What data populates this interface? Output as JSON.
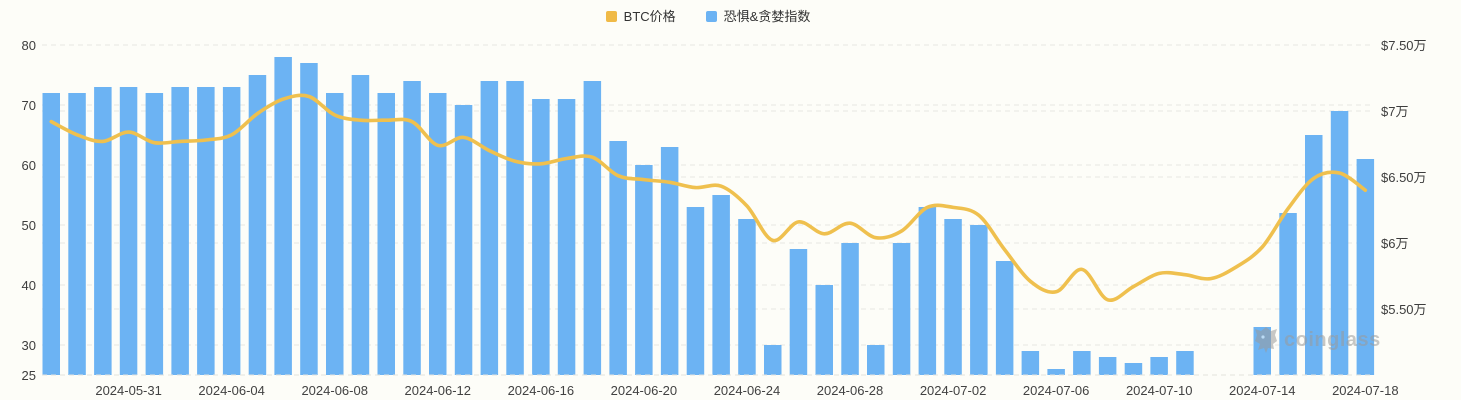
{
  "legend": [
    {
      "id": "btc-price",
      "label": "BTC价格",
      "color": "#F0BA47"
    },
    {
      "id": "fear-greed",
      "label": "恐惧&贪婪指数",
      "color": "#6CB3F3"
    }
  ],
  "watermark": {
    "text": "coinglass"
  },
  "colors": {
    "bar": "#6CB3F3",
    "line": "#EFC04E",
    "grid": "#E7E7E2",
    "axis_text": "#3d3d3d",
    "background": "#fdfdf8"
  },
  "chart_data": {
    "type": "combo-bar-line",
    "categories": [
      "2024-05-28",
      "2024-05-29",
      "2024-05-30",
      "2024-05-31",
      "2024-06-01",
      "2024-06-02",
      "2024-06-03",
      "2024-06-04",
      "2024-06-05",
      "2024-06-06",
      "2024-06-07",
      "2024-06-08",
      "2024-06-09",
      "2024-06-10",
      "2024-06-11",
      "2024-06-12",
      "2024-06-13",
      "2024-06-14",
      "2024-06-15",
      "2024-06-16",
      "2024-06-17",
      "2024-06-18",
      "2024-06-19",
      "2024-06-20",
      "2024-06-21",
      "2024-06-22",
      "2024-06-23",
      "2024-06-24",
      "2024-06-25",
      "2024-06-26",
      "2024-06-27",
      "2024-06-28",
      "2024-06-29",
      "2024-06-30",
      "2024-07-01",
      "2024-07-02",
      "2024-07-03",
      "2024-07-04",
      "2024-07-05",
      "2024-07-06",
      "2024-07-07",
      "2024-07-08",
      "2024-07-09",
      "2024-07-10",
      "2024-07-11",
      "2024-07-12",
      "2024-07-13",
      "2024-07-14",
      "2024-07-15",
      "2024-07-16",
      "2024-07-17",
      "2024-07-18"
    ],
    "series": [
      {
        "name": "恐惧&贪婪指数",
        "type": "bar",
        "axis": "left",
        "color": "#6CB3F3",
        "values": [
          72,
          72,
          73,
          73,
          72,
          73,
          73,
          73,
          75,
          78,
          77,
          72,
          75,
          72,
          74,
          72,
          70,
          74,
          74,
          71,
          71,
          74,
          64,
          60,
          63,
          53,
          55,
          51,
          30,
          46,
          40,
          47,
          30,
          47,
          53,
          51,
          50,
          44,
          29,
          26,
          29,
          28,
          27,
          28,
          29,
          null,
          null,
          33,
          52,
          65,
          69,
          61
        ]
      },
      {
        "name": "BTC价格",
        "type": "line",
        "axis": "right",
        "color": "#EFC04E",
        "unit": "万",
        "values_wan": [
          6.92,
          6.82,
          6.77,
          6.84,
          6.76,
          6.77,
          6.78,
          6.82,
          6.98,
          7.09,
          7.11,
          6.97,
          6.93,
          6.93,
          6.92,
          6.74,
          6.8,
          6.7,
          6.62,
          6.6,
          6.64,
          6.65,
          6.51,
          6.48,
          6.46,
          6.42,
          6.43,
          6.28,
          6.02,
          6.16,
          6.07,
          6.15,
          6.04,
          6.09,
          6.27,
          6.27,
          6.21,
          5.95,
          5.71,
          5.63,
          5.8,
          5.57,
          5.67,
          5.77,
          5.76,
          5.73,
          5.82,
          5.97,
          6.26,
          6.49,
          6.53,
          6.4
        ]
      }
    ],
    "left_axis": {
      "min": 25,
      "max": 80,
      "ticks": [
        80,
        70,
        60,
        50,
        40,
        30,
        25
      ]
    },
    "right_axis": {
      "min_wan": 5.0,
      "max_wan": 7.5,
      "ticks": [
        {
          "label": "$7.50万",
          "value_wan": 7.5
        },
        {
          "label": "$7万",
          "value_wan": 7.0
        },
        {
          "label": "$6.50万",
          "value_wan": 6.5
        },
        {
          "label": "$6万",
          "value_wan": 6.0
        },
        {
          "label": "$5.50万",
          "value_wan": 5.5
        }
      ]
    },
    "x_ticks": [
      {
        "label": "2024-05-31",
        "i": 3
      },
      {
        "label": "2024-06-04",
        "i": 7
      },
      {
        "label": "2024-06-08",
        "i": 11
      },
      {
        "label": "2024-06-12",
        "i": 15
      },
      {
        "label": "2024-06-16",
        "i": 19
      },
      {
        "label": "2024-06-20",
        "i": 23
      },
      {
        "label": "2024-06-24",
        "i": 27
      },
      {
        "label": "2024-06-28",
        "i": 31
      },
      {
        "label": "2024-07-02",
        "i": 35
      },
      {
        "label": "2024-07-06",
        "i": 39
      },
      {
        "label": "2024-07-10",
        "i": 43
      },
      {
        "label": "2024-07-14",
        "i": 47
      },
      {
        "label": "2024-07-18",
        "i": 51
      }
    ],
    "grid": true,
    "legend_position": "top"
  }
}
